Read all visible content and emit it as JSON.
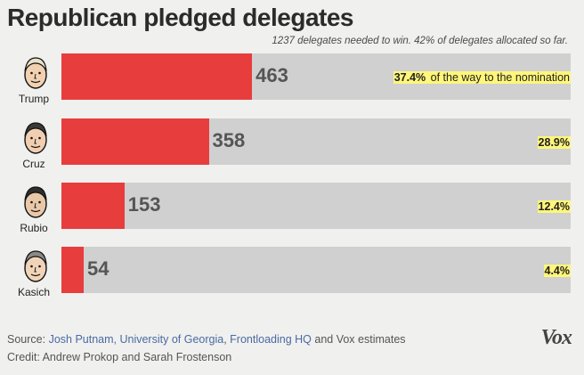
{
  "title": "Republican pledged delegates",
  "subtitle": "1237 delegates needed to win. 42% of delegates allocated so far.",
  "chart_data": {
    "type": "bar",
    "orientation": "horizontal",
    "title": "Republican pledged delegates",
    "total_needed": 1237,
    "categories": [
      "Trump",
      "Cruz",
      "Rubio",
      "Kasich"
    ],
    "values": [
      463,
      358,
      153,
      54
    ],
    "percent_labels": [
      "37.4%",
      "28.9%",
      "12.4%",
      "4.4%"
    ],
    "percent_values": [
      37.4,
      28.9,
      12.4,
      4.4
    ],
    "first_note": "of the way to the nomination",
    "xlim": [
      0,
      1237
    ]
  },
  "colors": {
    "bar": "#e83d3d",
    "track": "#d0d0d0",
    "highlight": "#fff67a"
  },
  "footer": {
    "source_label": "Source:",
    "source_1": "Josh Putnam, University of Georgia",
    "sep": ",",
    "source_2": "Frontloading HQ",
    "source_tail": "and Vox estimates",
    "credit": "Credit: Andrew Prokop and Sarah Frostenson",
    "logo": "Vox"
  }
}
